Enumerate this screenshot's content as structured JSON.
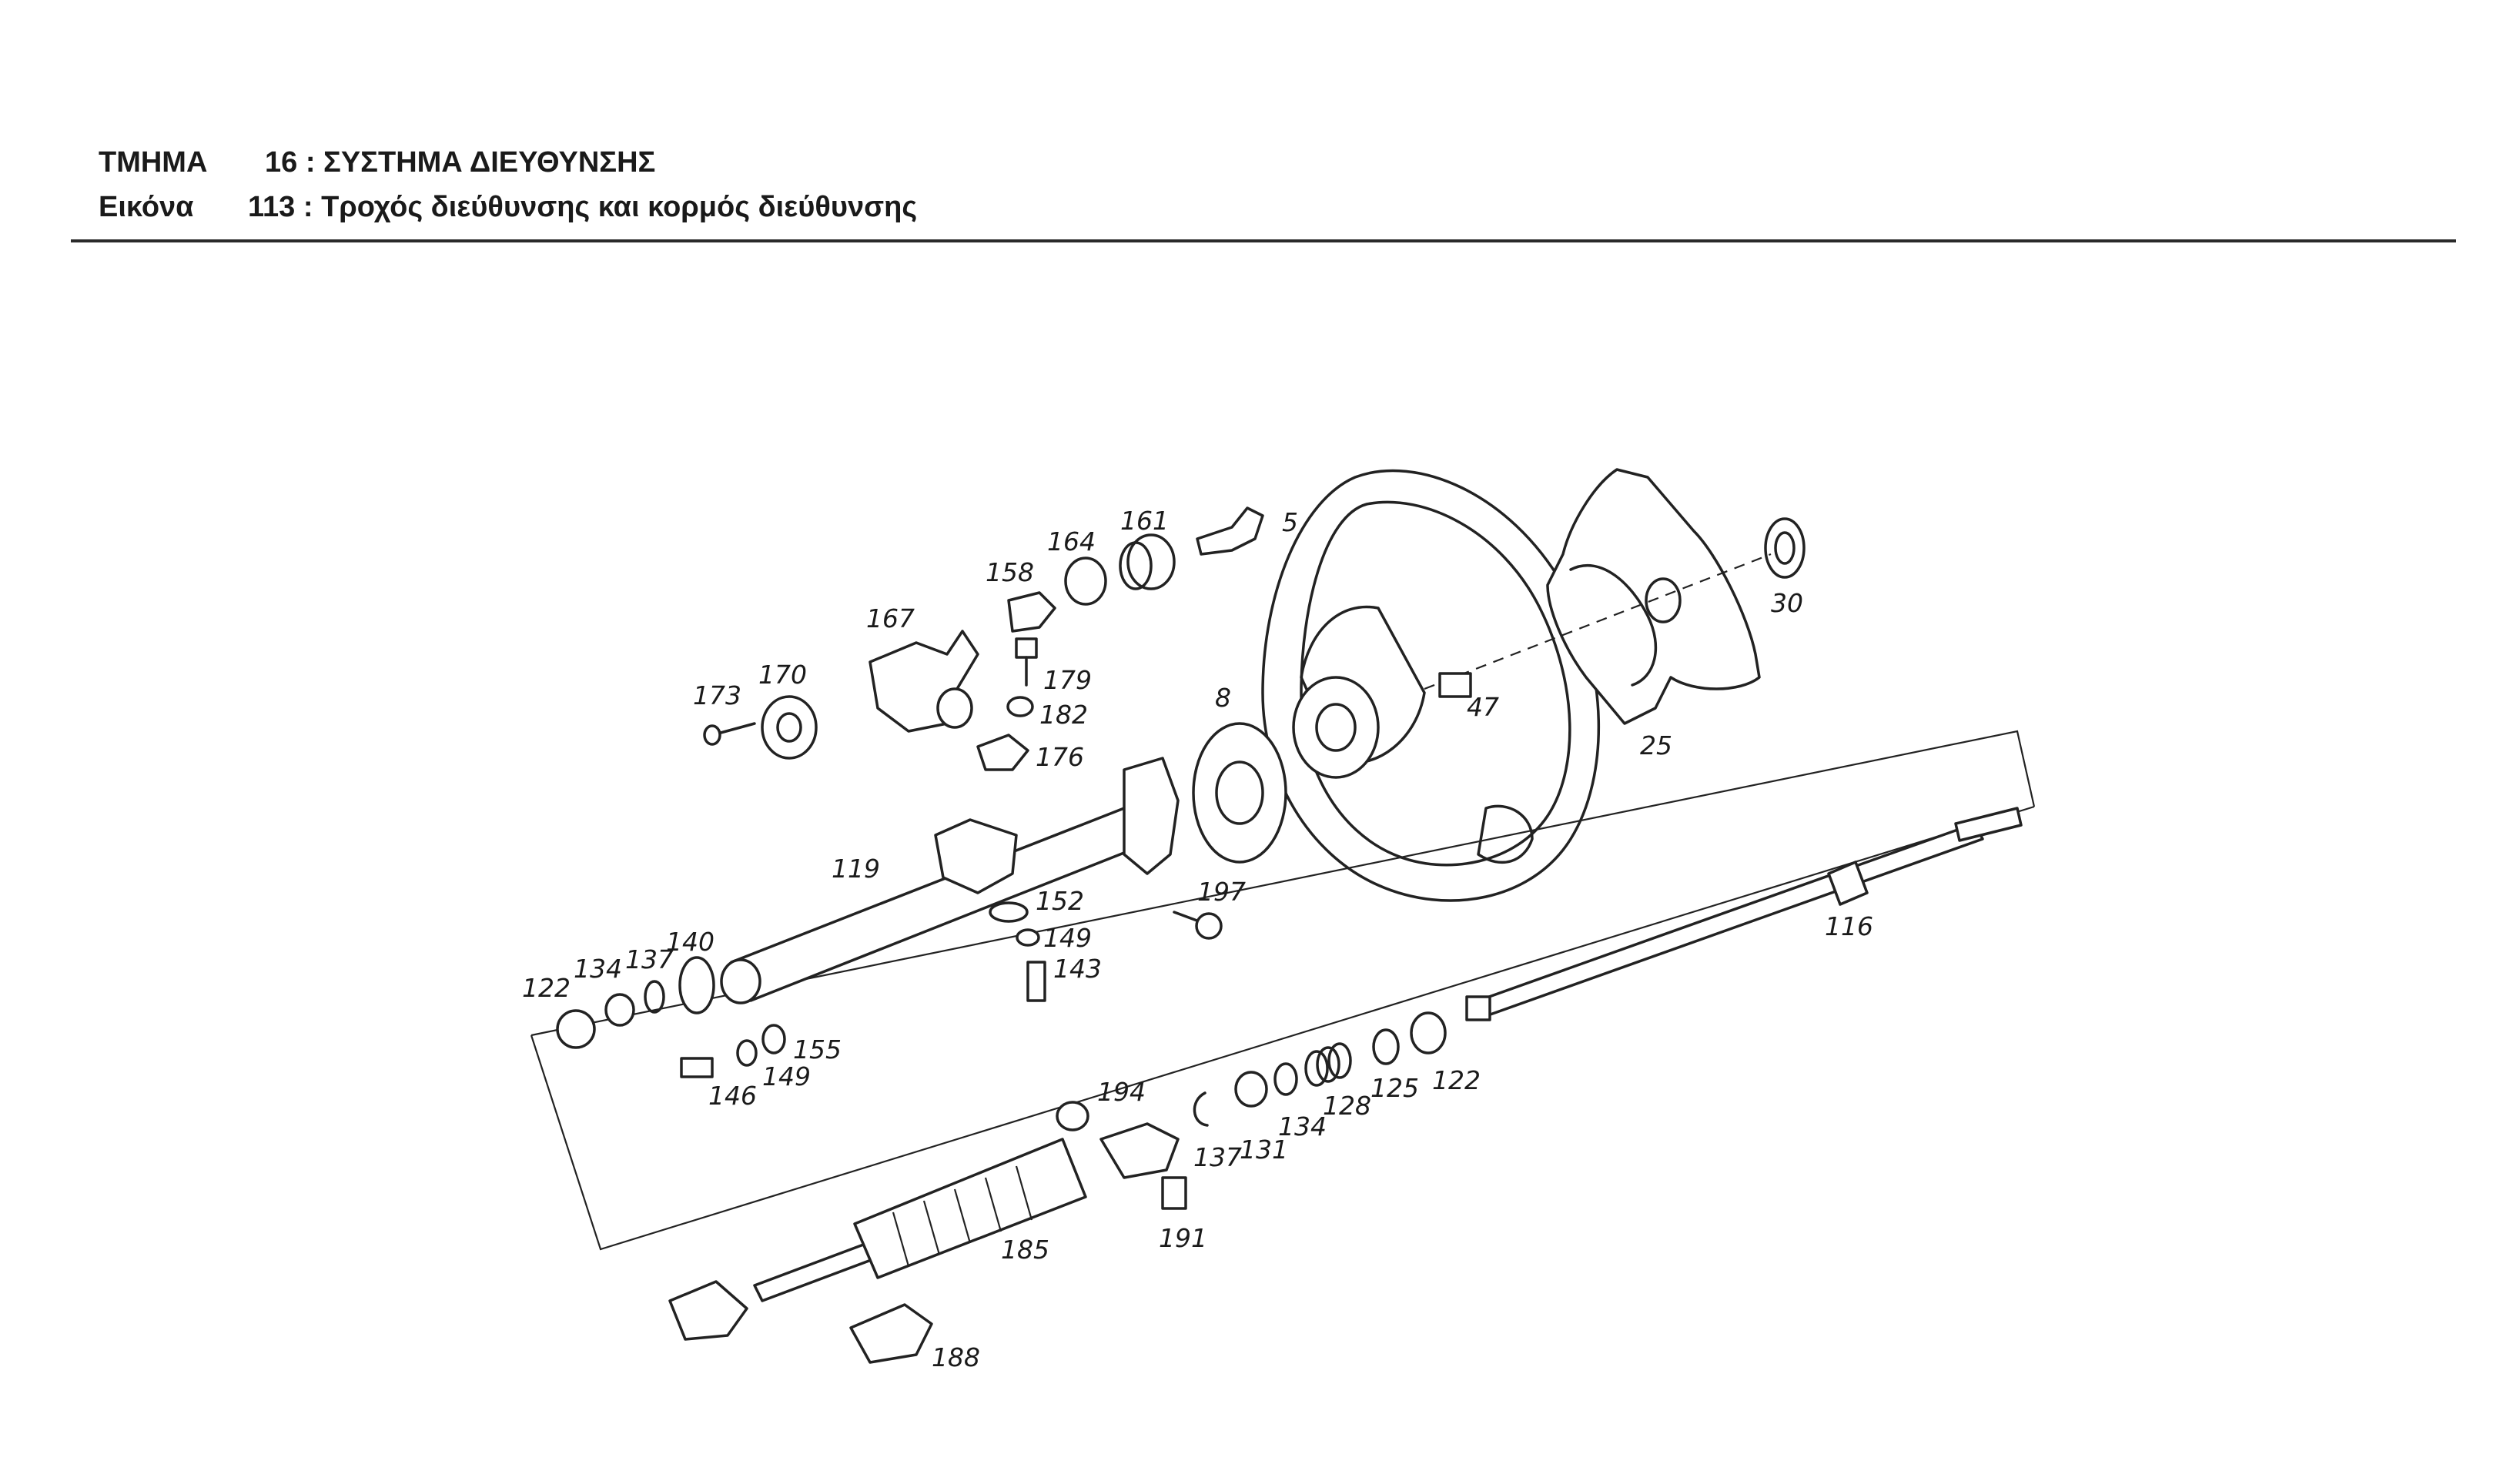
{
  "header": {
    "section_label": "ΤΜΗΜΑ",
    "section_text": "16 : ΣΥΣΤΗΜΑ ΔΙΕΥΘΥΝΣΗΣ",
    "figure_label": "Εικόνα",
    "figure_text": "113 :  Τροχός διεύθυνσης και κορμός διεύθυνσης"
  },
  "callouts": {
    "n5": "5",
    "n8": "8",
    "n25": "25",
    "n30": "30",
    "n47": "47",
    "n116": "116",
    "n119": "119",
    "n122a": "122",
    "n122b": "122",
    "n125": "125",
    "n128": "128",
    "n131": "131",
    "n134a": "134",
    "n134b": "134",
    "n137a": "137",
    "n137b": "137",
    "n140": "140",
    "n143": "143",
    "n146": "146",
    "n149a": "149",
    "n149b": "149",
    "n152": "152",
    "n155": "155",
    "n158": "158",
    "n161": "161",
    "n164": "164",
    "n167": "167",
    "n170": "170",
    "n173": "173",
    "n176": "176",
    "n179": "179",
    "n182": "182",
    "n185": "185",
    "n188": "188",
    "n191": "191",
    "n194": "194",
    "n197": "197"
  }
}
